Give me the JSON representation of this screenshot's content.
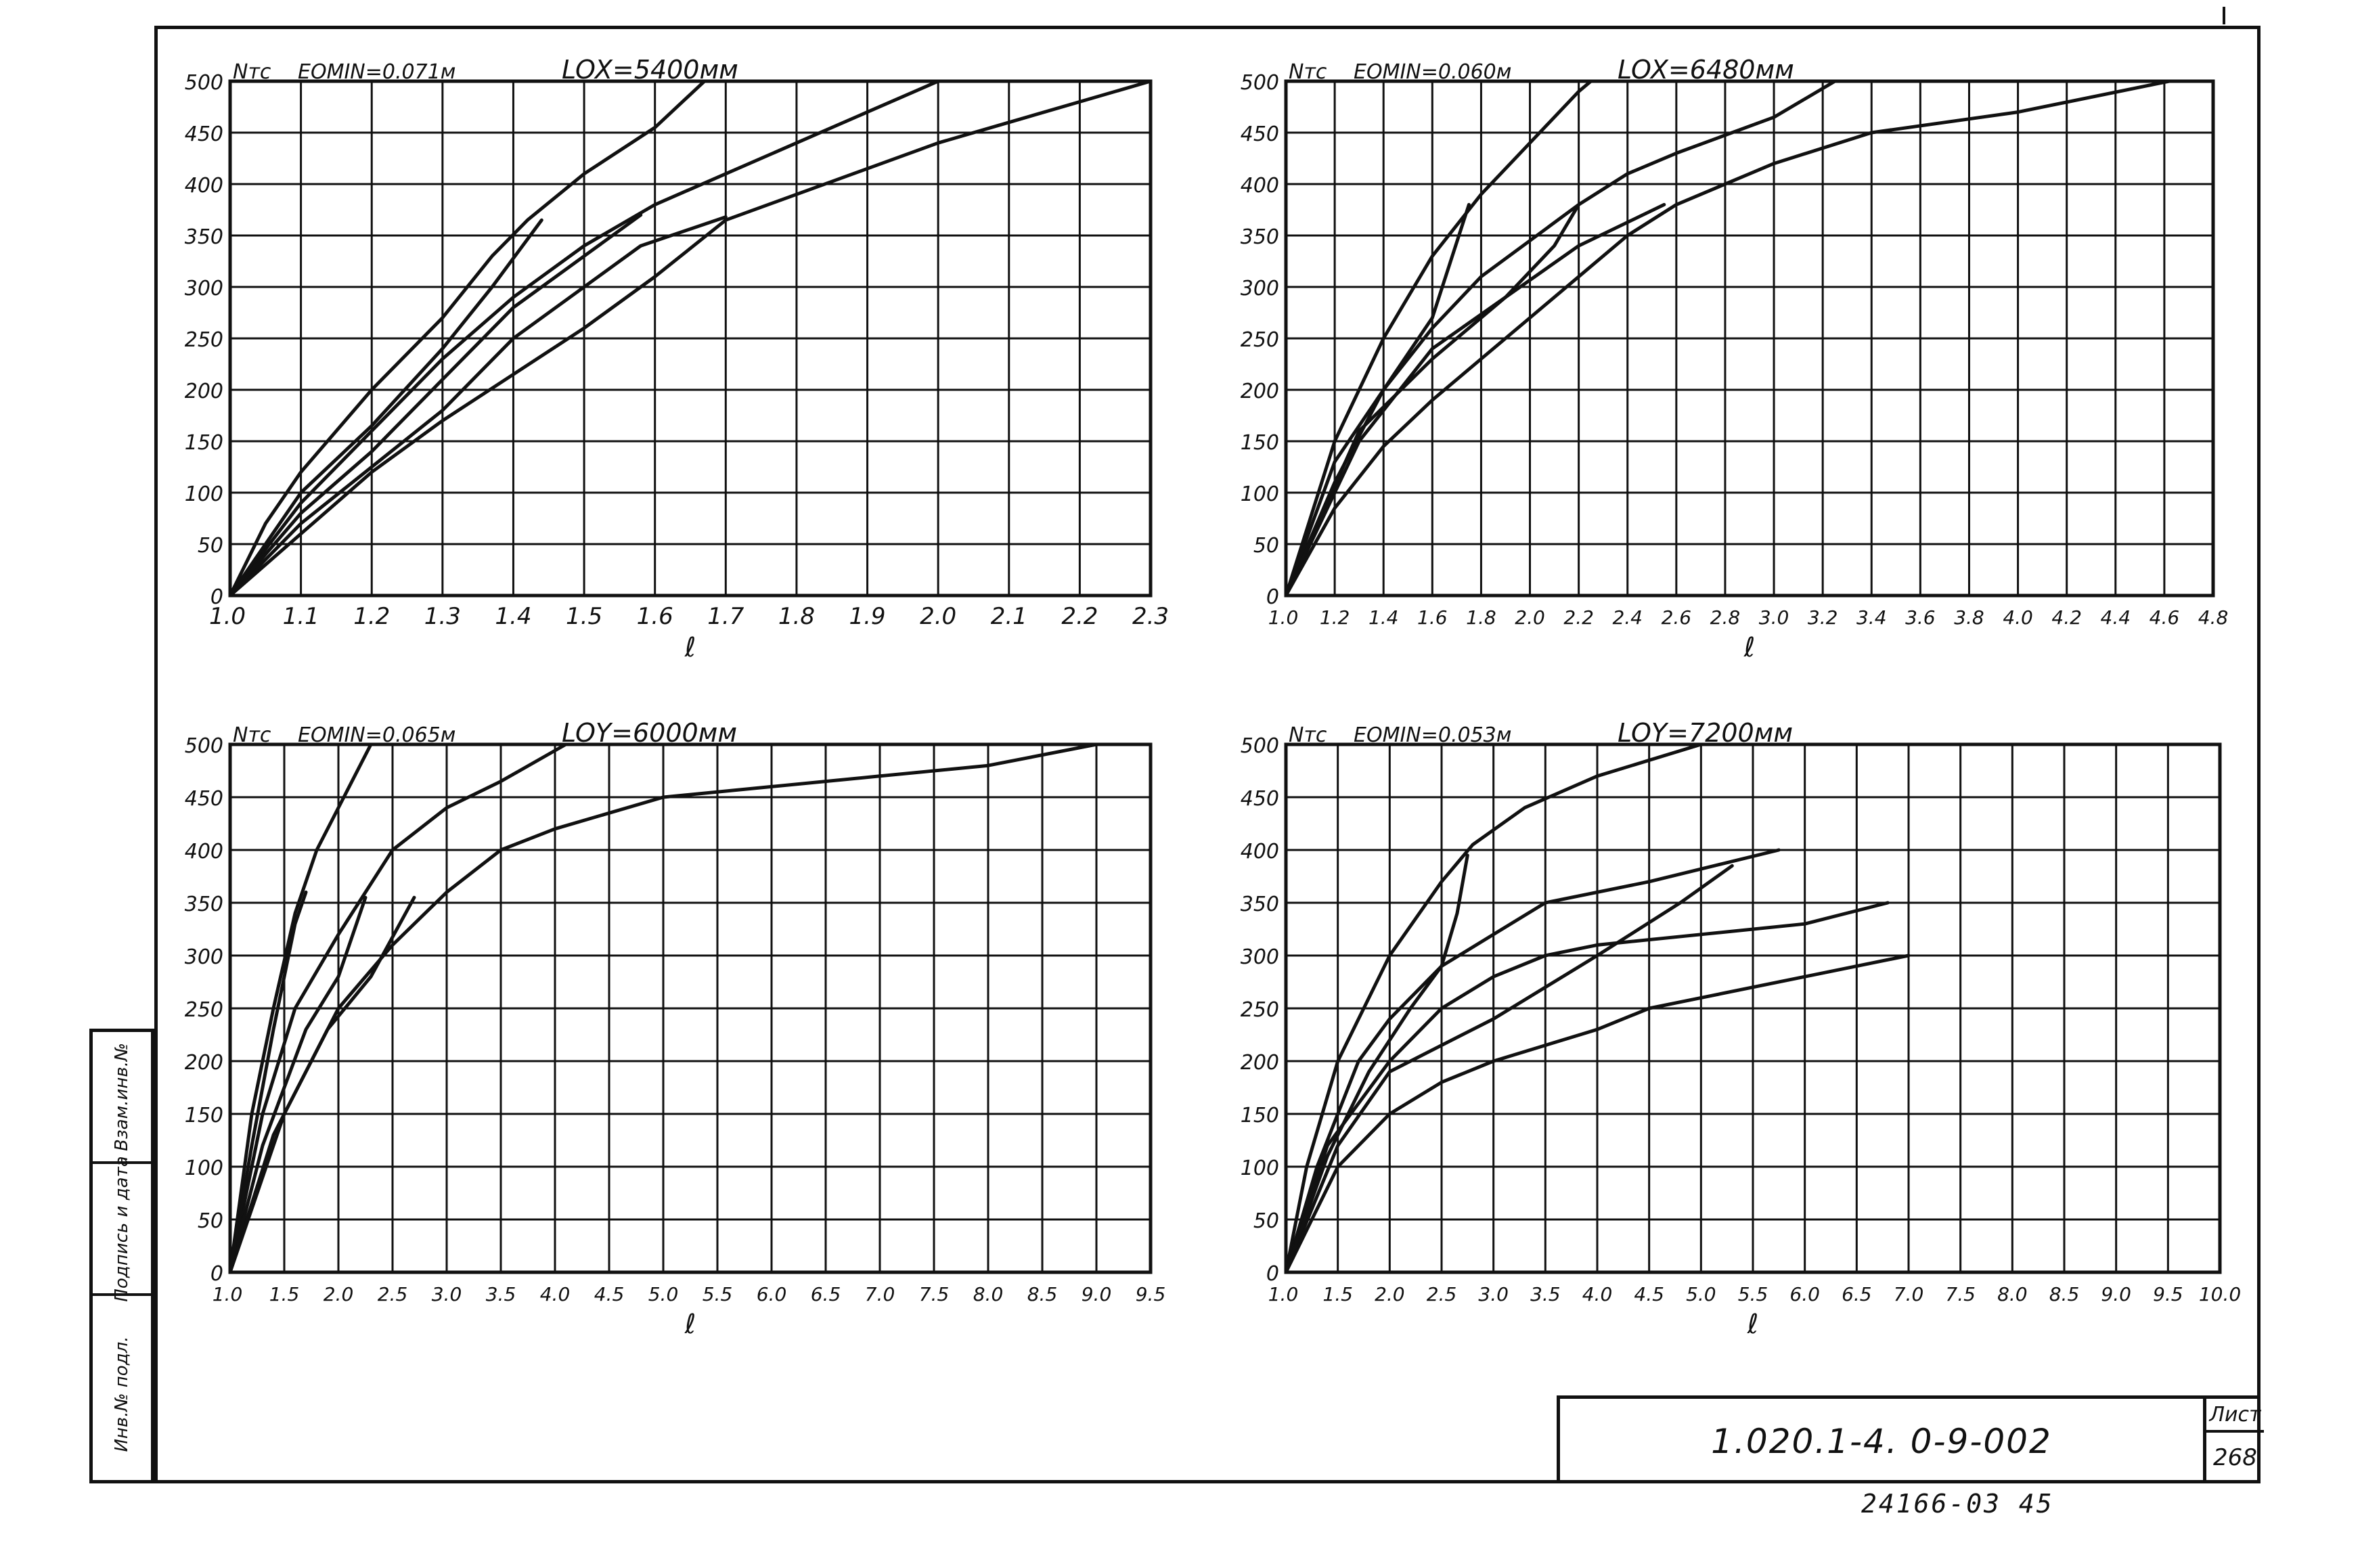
{
  "colors": {
    "ink": "#111111",
    "paper": "#ffffff"
  },
  "stamp": {
    "code": "1.020.1-4. 0-9-002",
    "sheet_label": "Лист",
    "sheet_number": "268"
  },
  "archive_number": "24166-03 45",
  "side_strip": {
    "cell1": "Взам.инв.№",
    "cell2": "Подпись и дата",
    "cell3": "Инв.№ подл."
  },
  "chart_data": [
    {
      "type": "line",
      "ylabel": "Nтс",
      "subtitle": "EOMIN=0.071м",
      "title": "LOX=5400мм",
      "xlabel": "ℓ",
      "xlim": [
        1.0,
        2.3
      ],
      "ylim": [
        0,
        500
      ],
      "x_ticks": [
        "1.0",
        "1.1",
        "1.2",
        "1.3",
        "1.4",
        "1.5",
        "1.6",
        "1.7",
        "1.8",
        "1.9",
        "2.0",
        "2.1",
        "2.2",
        "2.3"
      ],
      "y_ticks": [
        "0",
        "50",
        "100",
        "150",
        "200",
        "250",
        "300",
        "350",
        "400",
        "450",
        "500"
      ],
      "grid": true,
      "series": [
        {
          "points": [
            [
              1.0,
              0
            ],
            [
              1.05,
              70
            ],
            [
              1.1,
              120
            ],
            [
              1.2,
              200
            ],
            [
              1.3,
              270
            ],
            [
              1.37,
              330
            ],
            [
              1.42,
              365
            ],
            [
              1.5,
              410
            ],
            [
              1.6,
              455
            ],
            [
              1.67,
              500
            ]
          ]
        },
        {
          "points": [
            [
              1.0,
              0
            ],
            [
              1.1,
              90
            ],
            [
              1.2,
              160
            ],
            [
              1.3,
              230
            ],
            [
              1.4,
              290
            ],
            [
              1.5,
              340
            ],
            [
              1.6,
              380
            ],
            [
              1.7,
              410
            ],
            [
              1.8,
              440
            ],
            [
              1.9,
              470
            ],
            [
              2.0,
              500
            ]
          ]
        },
        {
          "points": [
            [
              1.0,
              0
            ],
            [
              1.1,
              60
            ],
            [
              1.2,
              120
            ],
            [
              1.3,
              170
            ],
            [
              1.4,
              215
            ],
            [
              1.5,
              260
            ],
            [
              1.6,
              310
            ],
            [
              1.7,
              365
            ],
            [
              1.8,
              390
            ],
            [
              1.9,
              415
            ],
            [
              2.0,
              440
            ],
            [
              2.1,
              460
            ],
            [
              2.2,
              480
            ],
            [
              2.3,
              500
            ]
          ]
        },
        {
          "points": [
            [
              1.0,
              0
            ],
            [
              1.1,
              70
            ],
            [
              1.3,
              180
            ],
            [
              1.4,
              250
            ],
            [
              1.5,
              300
            ],
            [
              1.58,
              340
            ],
            [
              1.7,
              368
            ]
          ]
        },
        {
          "points": [
            [
              1.0,
              0
            ],
            [
              1.1,
              80
            ],
            [
              1.2,
              140
            ],
            [
              1.3,
              210
            ],
            [
              1.4,
              280
            ],
            [
              1.5,
              330
            ],
            [
              1.58,
              370
            ]
          ]
        },
        {
          "points": [
            [
              1.0,
              0
            ],
            [
              1.1,
              100
            ],
            [
              1.2,
              165
            ],
            [
              1.3,
              240
            ],
            [
              1.37,
              300
            ],
            [
              1.44,
              365
            ]
          ]
        }
      ]
    },
    {
      "type": "line",
      "ylabel": "Nтс",
      "subtitle": "EOMIN=0.060м",
      "title": "LOX=6480мм",
      "xlabel": "ℓ",
      "xlim": [
        1.0,
        4.8
      ],
      "ylim": [
        0,
        500
      ],
      "x_ticks": [
        "1.0",
        "1.2",
        "1.4",
        "1.6",
        "1.8",
        "2.0",
        "2.2",
        "2.4",
        "2.6",
        "2.8",
        "3.0",
        "3.2",
        "3.4",
        "3.6",
        "3.8",
        "4.0",
        "4.2",
        "4.4",
        "4.6",
        "4.8"
      ],
      "y_ticks": [
        "0",
        "50",
        "100",
        "150",
        "200",
        "250",
        "300",
        "350",
        "400",
        "450",
        "500"
      ],
      "grid": true,
      "series": [
        {
          "points": [
            [
              1.0,
              0
            ],
            [
              1.2,
              150
            ],
            [
              1.4,
              250
            ],
            [
              1.6,
              330
            ],
            [
              1.8,
              390
            ],
            [
              2.0,
              440
            ],
            [
              2.2,
              490
            ],
            [
              2.25,
              500
            ]
          ]
        },
        {
          "points": [
            [
              1.0,
              0
            ],
            [
              1.2,
              110
            ],
            [
              1.4,
              200
            ],
            [
              1.6,
              260
            ],
            [
              1.8,
              310
            ],
            [
              2.0,
              345
            ],
            [
              2.2,
              380
            ],
            [
              2.4,
              410
            ],
            [
              2.6,
              430
            ],
            [
              3.0,
              465
            ],
            [
              3.25,
              500
            ]
          ]
        },
        {
          "points": [
            [
              1.0,
              0
            ],
            [
              1.2,
              85
            ],
            [
              1.4,
              145
            ],
            [
              1.6,
              190
            ],
            [
              1.8,
              230
            ],
            [
              2.0,
              270
            ],
            [
              2.2,
              310
            ],
            [
              2.4,
              350
            ],
            [
              2.6,
              380
            ],
            [
              3.0,
              420
            ],
            [
              3.4,
              450
            ],
            [
              4.0,
              470
            ],
            [
              4.62,
              500
            ]
          ]
        },
        {
          "points": [
            [
              1.0,
              0
            ],
            [
              1.3,
              150
            ],
            [
              1.6,
              240
            ],
            [
              1.9,
              290
            ],
            [
              2.2,
              340
            ],
            [
              2.55,
              380
            ]
          ]
        },
        {
          "points": [
            [
              1.0,
              0
            ],
            [
              1.3,
              160
            ],
            [
              1.6,
              230
            ],
            [
              1.9,
              290
            ],
            [
              2.1,
              340
            ],
            [
              2.2,
              380
            ]
          ]
        },
        {
          "points": [
            [
              1.0,
              0
            ],
            [
              1.2,
              130
            ],
            [
              1.4,
              200
            ],
            [
              1.6,
              270
            ],
            [
              1.75,
              380
            ]
          ]
        }
      ]
    },
    {
      "type": "line",
      "ylabel": "Nтс",
      "subtitle": "EOMIN=0.065м",
      "title": "LOY=6000мм",
      "xlabel": "ℓ",
      "xlim": [
        1.0,
        9.5
      ],
      "ylim": [
        0,
        500
      ],
      "x_ticks": [
        "1.0",
        "1.5",
        "2.0",
        "2.5",
        "3.0",
        "3.5",
        "4.0",
        "4.5",
        "5.0",
        "5.5",
        "6.0",
        "6.5",
        "7.0",
        "7.5",
        "8.0",
        "8.5",
        "9.0",
        "9.5"
      ],
      "y_ticks": [
        "0",
        "50",
        "100",
        "150",
        "200",
        "250",
        "300",
        "350",
        "400",
        "450",
        "500"
      ],
      "grid": true,
      "series": [
        {
          "points": [
            [
              1.0,
              0
            ],
            [
              1.2,
              150
            ],
            [
              1.4,
              250
            ],
            [
              1.6,
              340
            ],
            [
              1.8,
              400
            ],
            [
              2.0,
              440
            ],
            [
              2.3,
              500
            ]
          ]
        },
        {
          "points": [
            [
              1.0,
              0
            ],
            [
              1.3,
              150
            ],
            [
              1.6,
              250
            ],
            [
              2.0,
              320
            ],
            [
              2.5,
              400
            ],
            [
              3.0,
              440
            ],
            [
              3.5,
              465
            ],
            [
              4.1,
              500
            ]
          ]
        },
        {
          "points": [
            [
              1.0,
              0
            ],
            [
              1.5,
              150
            ],
            [
              2.0,
              250
            ],
            [
              2.5,
              310
            ],
            [
              3.0,
              360
            ],
            [
              3.5,
              400
            ],
            [
              4.0,
              420
            ],
            [
              5.0,
              450
            ],
            [
              6.0,
              460
            ],
            [
              7.0,
              470
            ],
            [
              8.0,
              480
            ],
            [
              9.0,
              500
            ]
          ]
        },
        {
          "points": [
            [
              1.0,
              0
            ],
            [
              1.4,
              130
            ],
            [
              1.9,
              230
            ],
            [
              2.3,
              280
            ],
            [
              2.7,
              355
            ]
          ]
        },
        {
          "points": [
            [
              1.0,
              0
            ],
            [
              1.3,
              120
            ],
            [
              1.7,
              230
            ],
            [
              2.0,
              280
            ],
            [
              2.25,
              355
            ]
          ]
        },
        {
          "points": [
            [
              1.0,
              0
            ],
            [
              1.2,
              120
            ],
            [
              1.4,
              230
            ],
            [
              1.6,
              330
            ],
            [
              1.7,
              360
            ]
          ]
        }
      ]
    },
    {
      "type": "line",
      "ylabel": "Nтс",
      "subtitle": "EOMIN=0.053м",
      "title": "LOY=7200мм",
      "xlabel": "ℓ",
      "xlim": [
        1.0,
        10.0
      ],
      "ylim": [
        0,
        500
      ],
      "x_ticks": [
        "1.0",
        "1.5",
        "2.0",
        "2.5",
        "3.0",
        "3.5",
        "4.0",
        "4.5",
        "5.0",
        "5.5",
        "6.0",
        "6.5",
        "7.0",
        "7.5",
        "8.0",
        "8.5",
        "9.0",
        "9.5",
        "10.0"
      ],
      "y_ticks": [
        "0",
        "50",
        "100",
        "150",
        "200",
        "250",
        "300",
        "350",
        "400",
        "450",
        "500"
      ],
      "grid": true,
      "series": [
        {
          "points": [
            [
              1.0,
              0
            ],
            [
              1.2,
              100
            ],
            [
              1.5,
              200
            ],
            [
              2.0,
              300
            ],
            [
              2.5,
              370
            ],
            [
              2.8,
              405
            ],
            [
              3.3,
              440
            ],
            [
              4.0,
              470
            ],
            [
              5.0,
              500
            ]
          ]
        },
        {
          "points": [
            [
              1.0,
              0
            ],
            [
              1.3,
              100
            ],
            [
              1.7,
              200
            ],
            [
              2.0,
              240
            ],
            [
              2.5,
              290
            ],
            [
              3.0,
              320
            ],
            [
              3.5,
              350
            ],
            [
              4.5,
              370
            ],
            [
              5.75,
              400
            ]
          ]
        },
        {
          "points": [
            [
              1.0,
              0
            ],
            [
              1.4,
              120
            ],
            [
              2.0,
              200
            ],
            [
              2.5,
              250
            ],
            [
              3.0,
              280
            ],
            [
              3.5,
              300
            ],
            [
              4.0,
              310
            ],
            [
              5.0,
              320
            ],
            [
              6.0,
              330
            ],
            [
              6.8,
              350
            ]
          ]
        },
        {
          "points": [
            [
              1.0,
              0
            ],
            [
              1.5,
              100
            ],
            [
              2.0,
              150
            ],
            [
              2.5,
              180
            ],
            [
              3.0,
              200
            ],
            [
              3.5,
              215
            ],
            [
              4.0,
              230
            ],
            [
              4.5,
              250
            ],
            [
              5.0,
              260
            ],
            [
              6.0,
              280
            ],
            [
              7.0,
              300
            ]
          ]
        },
        {
          "points": [
            [
              1.0,
              0
            ],
            [
              1.5,
              120
            ],
            [
              2.0,
              190
            ],
            [
              3.0,
              240
            ],
            [
              4.0,
              300
            ],
            [
              4.8,
              350
            ],
            [
              5.3,
              385
            ]
          ]
        },
        {
          "points": [
            [
              1.0,
              0
            ],
            [
              1.4,
              110
            ],
            [
              1.8,
              190
            ],
            [
              2.2,
              250
            ],
            [
              2.5,
              290
            ],
            [
              2.65,
              340
            ],
            [
              2.75,
              395
            ]
          ]
        }
      ]
    }
  ]
}
